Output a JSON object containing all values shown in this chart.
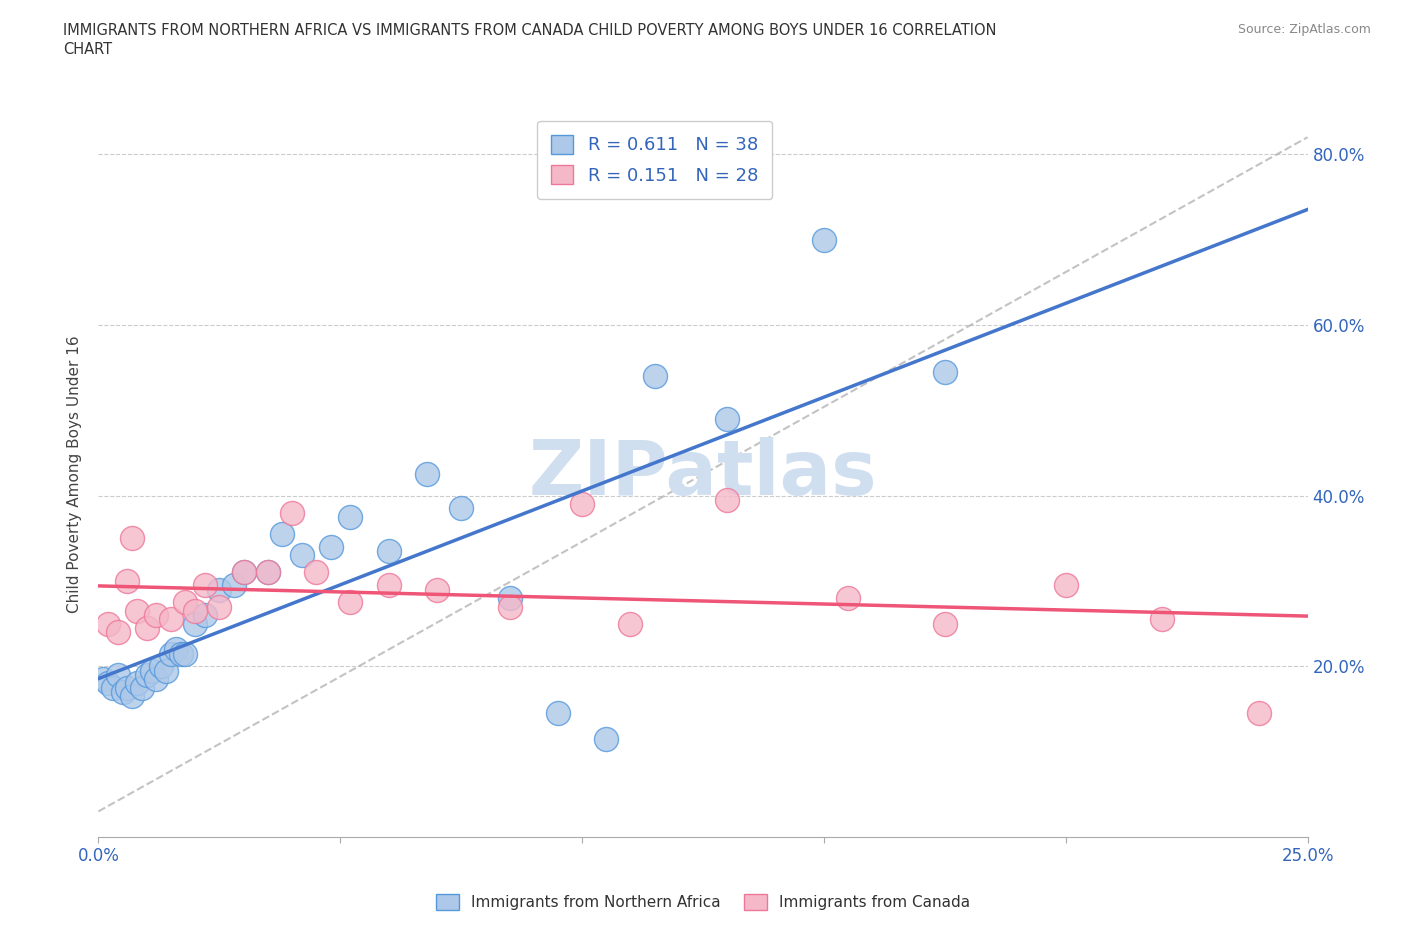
{
  "title_line1": "IMMIGRANTS FROM NORTHERN AFRICA VS IMMIGRANTS FROM CANADA CHILD POVERTY AMONG BOYS UNDER 16 CORRELATION",
  "title_line2": "CHART",
  "source": "Source: ZipAtlas.com",
  "ylabel": "Child Poverty Among Boys Under 16",
  "xlabel_blue": "Immigrants from Northern Africa",
  "xlabel_pink": "Immigrants from Canada",
  "xlim": [
    0.0,
    0.25
  ],
  "ylim": [
    0.0,
    0.85
  ],
  "ytick_vals": [
    0.0,
    0.2,
    0.4,
    0.6,
    0.8
  ],
  "ytick_labels": [
    "",
    "20.0%",
    "40.0%",
    "60.0%",
    "80.0%"
  ],
  "xtick_vals": [
    0.0,
    0.05,
    0.1,
    0.15,
    0.2,
    0.25
  ],
  "xtick_labels_show": [
    "0.0%",
    "",
    "",
    "",
    "",
    "25.0%"
  ],
  "R_blue": 0.611,
  "N_blue": 38,
  "R_pink": 0.151,
  "N_pink": 28,
  "color_blue_fill": "#adc8e8",
  "color_blue_edge": "#5599dd",
  "color_pink_fill": "#f5b8c8",
  "color_pink_edge": "#ee7799",
  "line_blue": "#4477cc",
  "line_pink": "#ee5577",
  "line_dashed_color": "#aaaaaa",
  "watermark_color": "#d0dff0",
  "blue_x": [
    0.001,
    0.002,
    0.003,
    0.004,
    0.005,
    0.006,
    0.007,
    0.008,
    0.009,
    0.01,
    0.011,
    0.012,
    0.013,
    0.014,
    0.015,
    0.016,
    0.017,
    0.018,
    0.02,
    0.022,
    0.025,
    0.028,
    0.03,
    0.035,
    0.038,
    0.042,
    0.048,
    0.052,
    0.06,
    0.068,
    0.075,
    0.085,
    0.095,
    0.105,
    0.115,
    0.13,
    0.15,
    0.175
  ],
  "blue_y": [
    0.185,
    0.18,
    0.175,
    0.19,
    0.17,
    0.175,
    0.165,
    0.18,
    0.175,
    0.19,
    0.195,
    0.185,
    0.2,
    0.195,
    0.215,
    0.22,
    0.215,
    0.215,
    0.25,
    0.26,
    0.29,
    0.295,
    0.31,
    0.31,
    0.355,
    0.33,
    0.34,
    0.375,
    0.335,
    0.425,
    0.385,
    0.28,
    0.145,
    0.115,
    0.54,
    0.49,
    0.7,
    0.545
  ],
  "pink_x": [
    0.002,
    0.004,
    0.006,
    0.007,
    0.008,
    0.01,
    0.012,
    0.015,
    0.018,
    0.02,
    0.022,
    0.025,
    0.03,
    0.035,
    0.04,
    0.045,
    0.052,
    0.06,
    0.07,
    0.085,
    0.1,
    0.11,
    0.13,
    0.155,
    0.175,
    0.2,
    0.22,
    0.24
  ],
  "pink_y": [
    0.25,
    0.24,
    0.3,
    0.35,
    0.265,
    0.245,
    0.26,
    0.255,
    0.275,
    0.265,
    0.295,
    0.27,
    0.31,
    0.31,
    0.38,
    0.31,
    0.275,
    0.295,
    0.29,
    0.27,
    0.39,
    0.25,
    0.395,
    0.28,
    0.25,
    0.295,
    0.255,
    0.145
  ]
}
